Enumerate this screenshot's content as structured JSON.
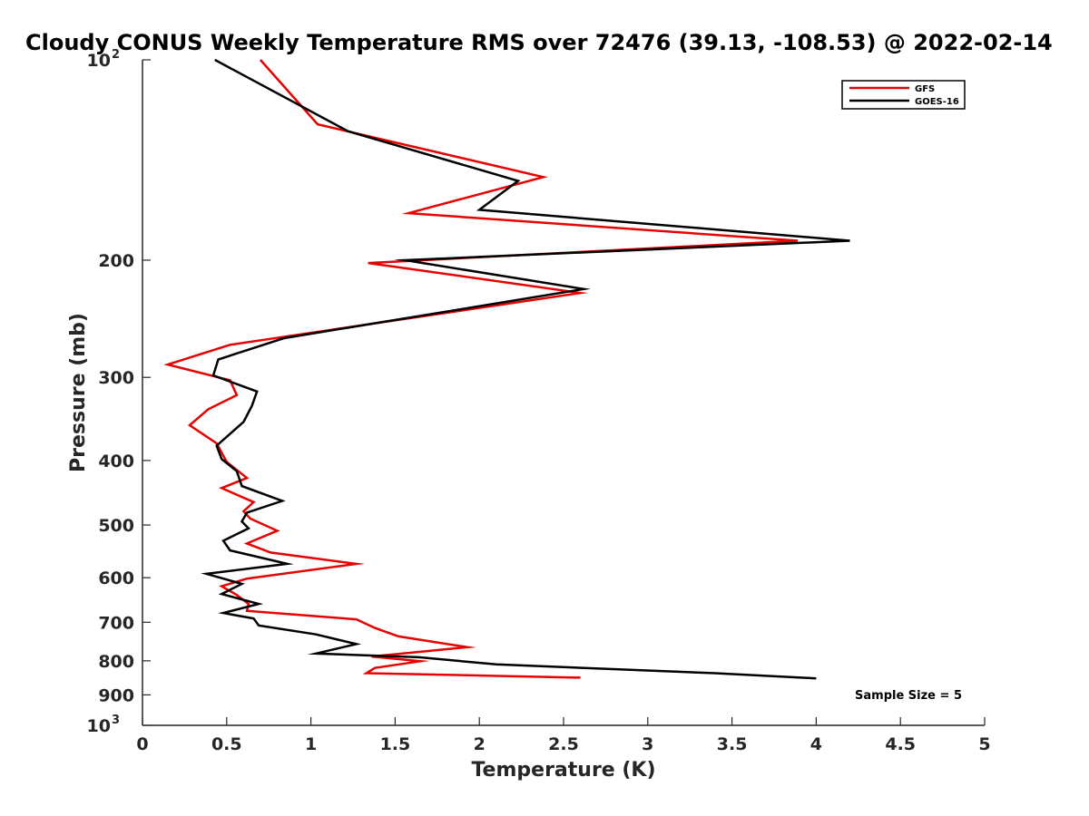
{
  "chart_data": {
    "type": "line",
    "title": "Cloudy CONUS Weekly Temperature RMS over 72476 (39.13, -108.53) @ 2022-02-14",
    "xlabel": "Temperature (K)",
    "ylabel": "Pressure (mb)",
    "xlim": [
      0,
      5
    ],
    "ylim": [
      100,
      1000
    ],
    "y_scale": "log",
    "y_reversed": true,
    "grid": false,
    "legend_position": "top-right",
    "x_ticks": [
      {
        "value": 0,
        "label": "0"
      },
      {
        "value": 0.5,
        "label": "0.5"
      },
      {
        "value": 1,
        "label": "1"
      },
      {
        "value": 1.5,
        "label": "1.5"
      },
      {
        "value": 2,
        "label": "2"
      },
      {
        "value": 2.5,
        "label": "2.5"
      },
      {
        "value": 3,
        "label": "3"
      },
      {
        "value": 3.5,
        "label": "3.5"
      },
      {
        "value": 4,
        "label": "4"
      },
      {
        "value": 4.5,
        "label": "4.5"
      },
      {
        "value": 5,
        "label": "5"
      }
    ],
    "y_ticks": [
      {
        "value": 100,
        "base": "10",
        "exp": "2"
      },
      {
        "value": 200,
        "label": "200"
      },
      {
        "value": 300,
        "label": "300"
      },
      {
        "value": 400,
        "label": "400"
      },
      {
        "value": 500,
        "label": "500"
      },
      {
        "value": 600,
        "label": "600"
      },
      {
        "value": 700,
        "label": "700"
      },
      {
        "value": 800,
        "label": "800"
      },
      {
        "value": 900,
        "label": "900"
      },
      {
        "value": 1000,
        "base": "10",
        "exp": "3"
      }
    ],
    "annotation": "Sample Size = 5",
    "series": [
      {
        "name": "GFS",
        "color": "#e60000",
        "points": [
          [
            0.7,
            100
          ],
          [
            1.04,
            125
          ],
          [
            2.38,
            150
          ],
          [
            1.58,
            170
          ],
          [
            3.89,
            187
          ],
          [
            1.34,
            202
          ],
          [
            2.6,
            224
          ],
          [
            0.52,
            268
          ],
          [
            0.15,
            287
          ],
          [
            0.52,
            303
          ],
          [
            0.56,
            319
          ],
          [
            0.39,
            335
          ],
          [
            0.28,
            354
          ],
          [
            0.44,
            377
          ],
          [
            0.5,
            402
          ],
          [
            0.62,
            425
          ],
          [
            0.47,
            440
          ],
          [
            0.66,
            462
          ],
          [
            0.6,
            477
          ],
          [
            0.64,
            489
          ],
          [
            0.8,
            510
          ],
          [
            0.62,
            533
          ],
          [
            0.76,
            550
          ],
          [
            1.27,
            572
          ],
          [
            0.62,
            602
          ],
          [
            0.47,
            618
          ],
          [
            0.56,
            637
          ],
          [
            0.63,
            657
          ],
          [
            0.62,
            673
          ],
          [
            1.27,
            693
          ],
          [
            1.38,
            714
          ],
          [
            1.52,
            735
          ],
          [
            1.93,
            763
          ],
          [
            1.36,
            788
          ],
          [
            1.65,
            801
          ],
          [
            1.38,
            820
          ],
          [
            1.33,
            835
          ],
          [
            2.6,
            848
          ]
        ]
      },
      {
        "name": "GOES-16",
        "color": "#000000",
        "points": [
          [
            0.43,
            100
          ],
          [
            1.22,
            128
          ],
          [
            2.23,
            152
          ],
          [
            2.0,
            168
          ],
          [
            4.2,
            187
          ],
          [
            1.56,
            200
          ],
          [
            2.62,
            221
          ],
          [
            0.84,
            262
          ],
          [
            0.45,
            282
          ],
          [
            0.42,
            298
          ],
          [
            0.68,
            315
          ],
          [
            0.65,
            331
          ],
          [
            0.6,
            350
          ],
          [
            0.44,
            380
          ],
          [
            0.47,
            398
          ],
          [
            0.56,
            415
          ],
          [
            0.59,
            437
          ],
          [
            0.83,
            460
          ],
          [
            0.62,
            479
          ],
          [
            0.59,
            494
          ],
          [
            0.63,
            506
          ],
          [
            0.48,
            528
          ],
          [
            0.52,
            546
          ],
          [
            0.86,
            572
          ],
          [
            0.38,
            592
          ],
          [
            0.59,
            613
          ],
          [
            0.47,
            635
          ],
          [
            0.69,
            657
          ],
          [
            0.48,
            678
          ],
          [
            0.66,
            691
          ],
          [
            0.69,
            708
          ],
          [
            1.03,
            730
          ],
          [
            1.27,
            755
          ],
          [
            1.03,
            780
          ],
          [
            1.64,
            790
          ],
          [
            2.1,
            810
          ],
          [
            3.4,
            835
          ],
          [
            4.0,
            850
          ]
        ]
      }
    ]
  }
}
